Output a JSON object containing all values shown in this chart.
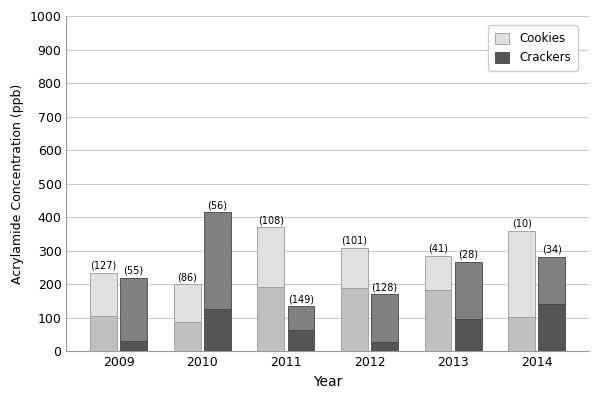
{
  "years": [
    2009,
    2010,
    2011,
    2012,
    2013,
    2014
  ],
  "cookies": {
    "bottom_section": [
      105,
      88,
      193,
      188,
      183,
      103
    ],
    "total": [
      235,
      200,
      370,
      310,
      285,
      360
    ],
    "n": [
      127,
      86,
      108,
      101,
      41,
      10
    ],
    "color_bottom": "#c0c0c0",
    "color_top": "#e0e0e0"
  },
  "crackers": {
    "bottom_section": [
      30,
      128,
      63,
      28,
      98,
      143
    ],
    "total": [
      220,
      415,
      135,
      170,
      268,
      282
    ],
    "n": [
      55,
      56,
      149,
      128,
      28,
      34
    ],
    "color_bottom": "#555555",
    "color_top": "#808080"
  },
  "bar_width": 0.32,
  "bar_gap": 0.04,
  "ylabel": "Acrylamide Concentration (ppb)",
  "xlabel": "Year",
  "ylim": [
    0,
    1000
  ],
  "yticks": [
    0,
    100,
    200,
    300,
    400,
    500,
    600,
    700,
    800,
    900,
    1000
  ],
  "legend_cookies": "Cookies",
  "legend_crackers": "Crackers",
  "background_color": "#ffffff",
  "grid_color": "#c8c8c8",
  "annotation_fontsize": 7,
  "figsize": [
    6.0,
    4.0
  ],
  "dpi": 100
}
